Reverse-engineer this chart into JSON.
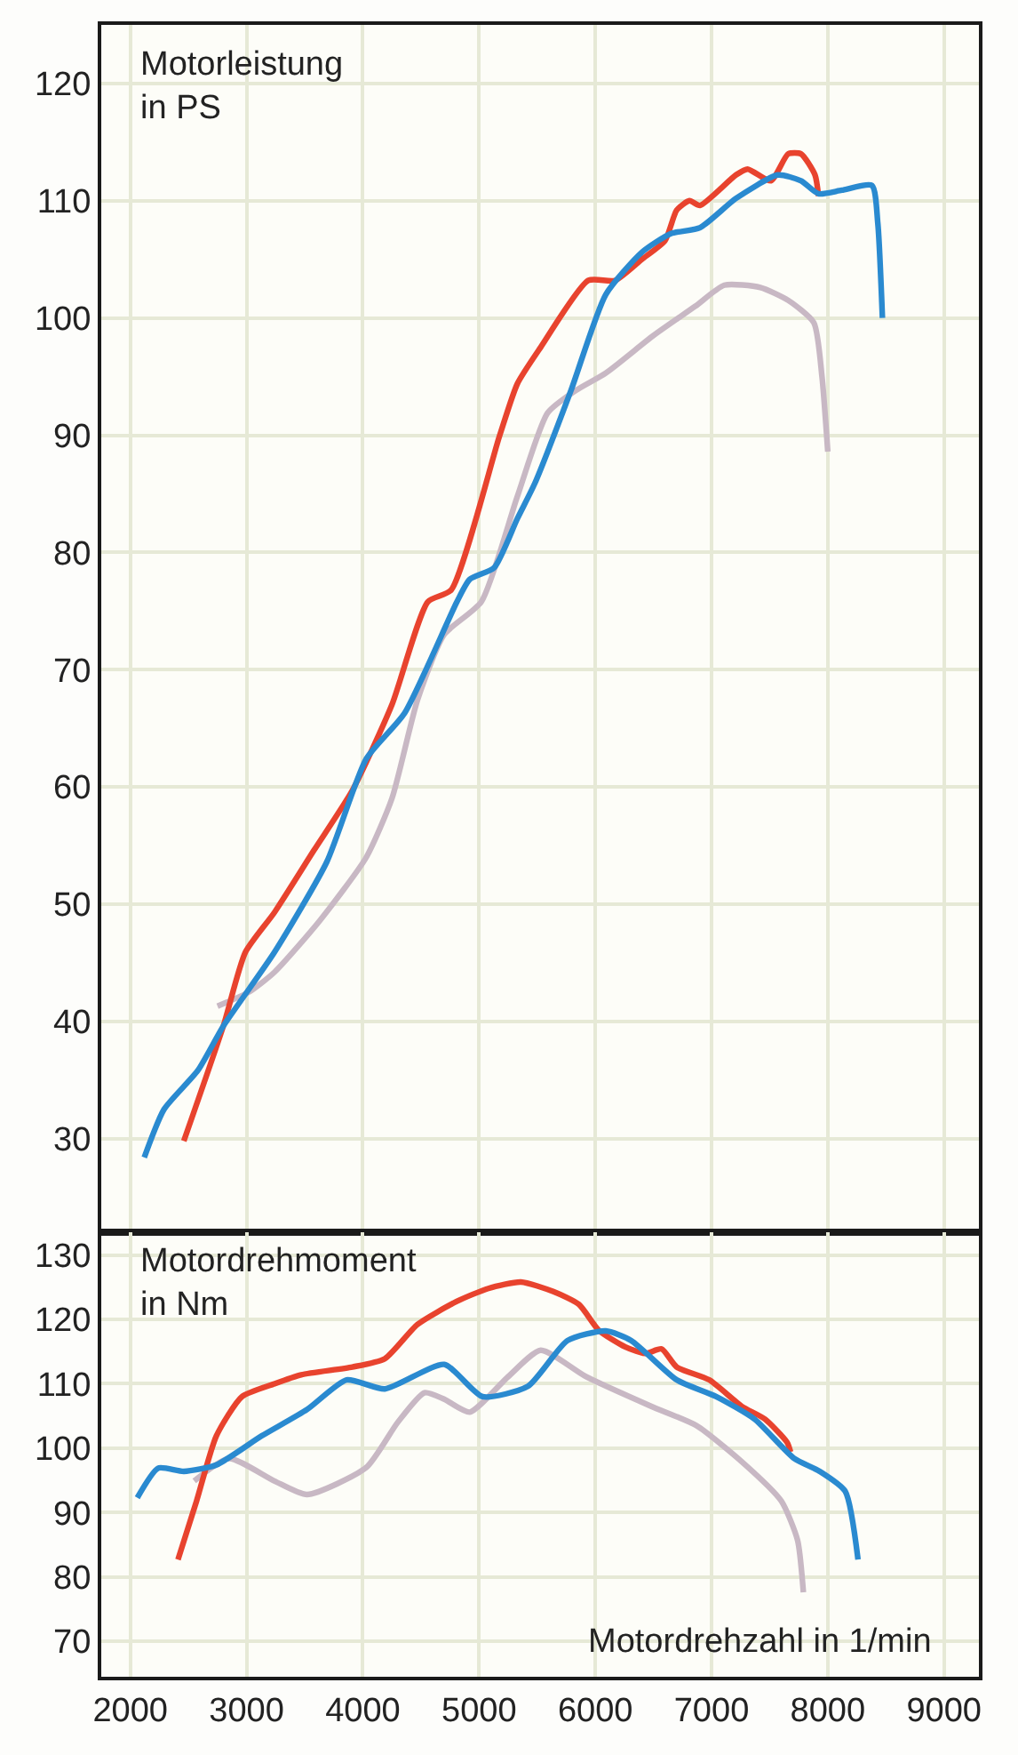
{
  "chart_data": [
    {
      "type": "line",
      "annotations": [
        "Motorleistung\nin PS"
      ],
      "xlim": [
        1750,
        9300
      ],
      "xticks": [
        2000,
        3000,
        4000,
        5000,
        6000,
        7000,
        8000,
        9000
      ],
      "ylim": [
        22,
        125
      ],
      "yticks": [
        30,
        40,
        50,
        60,
        70,
        80,
        90,
        100,
        110,
        120
      ],
      "grid": true,
      "tick_labels": "y",
      "marker": "none",
      "line_style": "solid",
      "series": [
        {
          "color": "#c8b8c4",
          "x": [
            2750,
            3020,
            3240,
            3630,
            4030,
            4250,
            4470,
            4700,
            5020,
            5330,
            5590,
            5830,
            6090,
            6500,
            6860,
            7110,
            7420,
            7660,
            7880,
            7950,
            8000
          ],
          "values": [
            41.3,
            42.5,
            44.2,
            48.6,
            54,
            59,
            67.4,
            73,
            75.8,
            84.8,
            91.9,
            93.8,
            95.3,
            98.5,
            101,
            102.8,
            102.6,
            101.5,
            99.6,
            95,
            88.6
          ]
        },
        {
          "color": "#e8432e",
          "x": [
            2460,
            2800,
            2990,
            3240,
            3580,
            3910,
            4250,
            4560,
            4760,
            5175,
            5330,
            5530,
            5940,
            6170,
            6400,
            6600,
            6700,
            6810,
            6900,
            7210,
            7310,
            7510,
            7660,
            7770,
            7890,
            7920
          ],
          "values": [
            29.8,
            39.6,
            45.9,
            49.3,
            54.6,
            59.7,
            67,
            75.8,
            76.8,
            89.9,
            94.4,
            97.5,
            103.2,
            103.2,
            105,
            106.6,
            109.2,
            110,
            109.6,
            112.2,
            112.7,
            111.7,
            114,
            114,
            112.2,
            110.4
          ]
        },
        {
          "color": "#2a8ad0",
          "x": [
            2120,
            2290,
            2580,
            2800,
            3240,
            3690,
            4030,
            4360,
            4810,
            4920,
            5130,
            5330,
            5480,
            5790,
            6090,
            6400,
            6650,
            6900,
            7210,
            7570,
            7770,
            7920,
            8120,
            8380,
            8430,
            8470
          ],
          "values": [
            28.4,
            32.5,
            35.8,
            39.6,
            45.9,
            53.6,
            62.4,
            66.3,
            75.8,
            77.7,
            78.7,
            82.9,
            85.9,
            93.8,
            102,
            105.6,
            107.2,
            107.7,
            110.2,
            112.2,
            111.7,
            110.6,
            110.9,
            111.3,
            108.1,
            100
          ]
        }
      ]
    },
    {
      "type": "line",
      "annotations": [
        "Motordrehmoment\nin Nm"
      ],
      "xlabel": "Motordrehzahl in 1/min",
      "xlim": [
        1750,
        9300
      ],
      "xticks": [
        2000,
        3000,
        4000,
        5000,
        6000,
        7000,
        8000,
        9000
      ],
      "ylim": [
        64.5,
        133.5
      ],
      "yticks": [
        70,
        80,
        90,
        100,
        110,
        120,
        130
      ],
      "grid": true,
      "marker": "none",
      "line_style": "solid",
      "series": [
        {
          "color": "#c8b8c4",
          "x": [
            2550,
            2850,
            3240,
            3520,
            4030,
            4300,
            4530,
            4700,
            4920,
            5250,
            5530,
            5920,
            6480,
            6870,
            7260,
            7600,
            7740,
            7790
          ],
          "values": [
            94.9,
            98.4,
            94.9,
            92.8,
            97,
            104,
            108.6,
            107.6,
            105.6,
            111.1,
            115.2,
            111.1,
            106.5,
            103.5,
            97.9,
            91.8,
            85.7,
            77.6
          ]
        },
        {
          "color": "#e8432e",
          "x": [
            2410,
            2570,
            2740,
            2960,
            3240,
            3470,
            3910,
            4190,
            4470,
            4810,
            5080,
            5360,
            5640,
            5860,
            6030,
            6260,
            6430,
            6570,
            6700,
            6980,
            7260,
            7460,
            7650,
            7680
          ],
          "values": [
            82.7,
            91.8,
            101.9,
            108,
            110,
            111.4,
            112.6,
            113.9,
            119.2,
            122.8,
            124.8,
            125.8,
            124.3,
            122.3,
            118.3,
            115.7,
            114.7,
            115.4,
            112.6,
            110.6,
            106.5,
            104.5,
            100.9,
            99.4
          ]
        },
        {
          "color": "#2a8ad0",
          "x": [
            2060,
            2240,
            2460,
            2740,
            3130,
            3520,
            3860,
            4190,
            4700,
            5030,
            5420,
            5760,
            6090,
            6310,
            6700,
            7040,
            7370,
            7710,
            7930,
            8150,
            8260
          ],
          "values": [
            92.3,
            96.9,
            96.4,
            97.4,
            101.9,
            106,
            110.6,
            109.2,
            113,
            108,
            109.6,
            116.7,
            118.2,
            116.7,
            110.6,
            108,
            104.5,
            98.4,
            96.4,
            93.3,
            82.7
          ]
        }
      ]
    }
  ]
}
